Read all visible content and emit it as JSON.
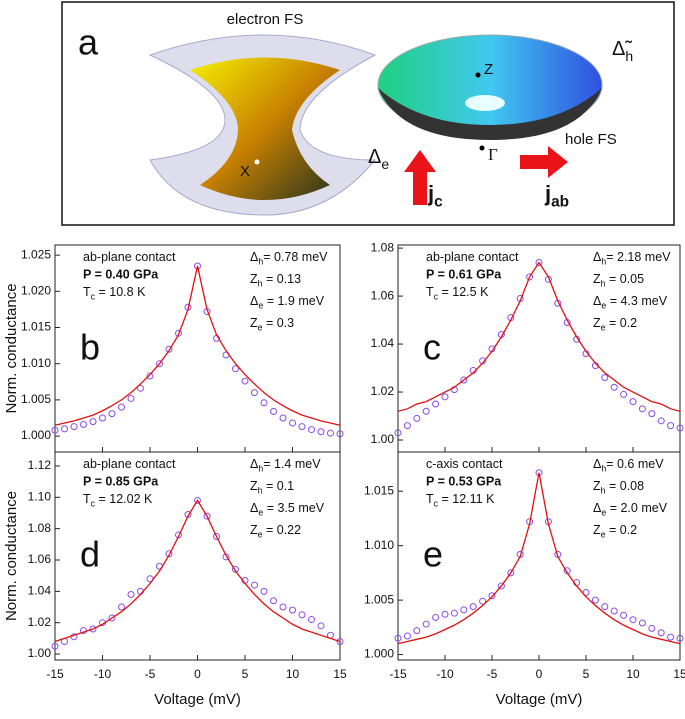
{
  "panel_a": {
    "letter": "a",
    "electron_label": "electron FS",
    "x_point": "X",
    "z_point": "Z",
    "gamma_point": "Γ",
    "hole_label": "hole FS",
    "delta_e": {
      "base": "Δ",
      "sub": "e"
    },
    "delta_h": {
      "base": "Δ̃",
      "sub": "h"
    },
    "jc": {
      "base": "j",
      "sub": "c"
    },
    "jab": {
      "base": "j",
      "sub": "ab"
    }
  },
  "chart_data": [
    {
      "type": "line",
      "panel": "b",
      "ylabel": "Norm. conductance",
      "x": [
        -15,
        -14,
        -13,
        -12,
        -11,
        -10,
        -9,
        -8,
        -7,
        -6,
        -5,
        -4,
        -3,
        -2,
        -1,
        0,
        1,
        2,
        3,
        4,
        5,
        6,
        7,
        8,
        9,
        10,
        11,
        12,
        13,
        14,
        15
      ],
      "series": [
        {
          "mode": "markers",
          "color": "#8a4be8",
          "values": [
            1.0008,
            1.001,
            1.0013,
            1.0016,
            1.002,
            1.0025,
            1.0031,
            1.004,
            1.0052,
            1.0066,
            1.0083,
            1.01,
            1.012,
            1.0142,
            1.0178,
            1.0235,
            1.0172,
            1.0135,
            1.0112,
            1.0093,
            1.0076,
            1.006,
            1.0046,
            1.0034,
            1.0025,
            1.0018,
            1.0013,
            1.0009,
            1.0006,
            1.0004,
            1.0003
          ]
        },
        {
          "mode": "lines",
          "color": "#e01010",
          "values": [
            1.0015,
            1.0018,
            1.0021,
            1.0025,
            1.0029,
            1.0035,
            1.0042,
            1.005,
            1.006,
            1.0072,
            1.0085,
            1.01,
            1.0118,
            1.014,
            1.0175,
            1.0235,
            1.0175,
            1.014,
            1.0118,
            1.01,
            1.0085,
            1.0072,
            1.006,
            1.005,
            1.0042,
            1.0035,
            1.0029,
            1.0025,
            1.0021,
            1.0018,
            1.0015
          ]
        }
      ],
      "xlim": [
        -15,
        15
      ],
      "xticks": [
        -15,
        -10,
        -5,
        0,
        5,
        10,
        15
      ],
      "ylim": [
        0.9978,
        1.0264
      ],
      "yticks": [
        {
          "value": 1.0,
          "label": "1.000"
        },
        1.005,
        {
          "value": 1.01,
          "label": "1.010"
        },
        1.015,
        {
          "value": 1.02,
          "label": "1.020"
        },
        1.025
      ],
      "left_notes": [
        {
          "text": "ab-plane contact"
        },
        {
          "text": "P = 0.40 GPa",
          "color": "#e8141a"
        },
        {
          "base": "T",
          "sub": "c",
          "rest": " = 10.8 K"
        }
      ],
      "right_notes": [
        {
          "base": "Δ",
          "sub": "h",
          "rest": "= 0.78 meV"
        },
        {
          "base": "Z",
          "sub": "h",
          "rest": " = 0.13"
        },
        {
          "base": "Δ",
          "sub": "e",
          "rest": " = 1.9 meV"
        },
        {
          "base": "Z",
          "sub": "e",
          "rest": " = 0.3"
        }
      ]
    },
    {
      "type": "line",
      "panel": "c",
      "x": [
        -15,
        -14,
        -13,
        -12,
        -11,
        -10,
        -9,
        -8,
        -7,
        -6,
        -5,
        -4,
        -3,
        -2,
        -1,
        0,
        1,
        2,
        3,
        4,
        5,
        6,
        7,
        8,
        9,
        10,
        11,
        12,
        13,
        14,
        15
      ],
      "series": [
        {
          "mode": "markers",
          "color": "#8a4be8",
          "values": [
            1.003,
            1.006,
            1.009,
            1.012,
            1.015,
            1.018,
            1.021,
            1.025,
            1.029,
            1.033,
            1.038,
            1.044,
            1.051,
            1.059,
            1.068,
            1.074,
            1.067,
            1.057,
            1.049,
            1.042,
            1.036,
            1.031,
            1.026,
            1.022,
            1.019,
            1.016,
            1.013,
            1.011,
            1.008,
            1.006,
            1.005
          ]
        },
        {
          "mode": "lines",
          "color": "#e01010",
          "values": [
            1.012,
            1.013,
            1.015,
            1.016,
            1.018,
            1.02,
            1.022,
            1.025,
            1.028,
            1.032,
            1.037,
            1.043,
            1.05,
            1.058,
            1.068,
            1.074,
            1.068,
            1.058,
            1.05,
            1.043,
            1.037,
            1.032,
            1.028,
            1.025,
            1.022,
            1.02,
            1.018,
            1.016,
            1.015,
            1.013,
            1.012
          ]
        }
      ],
      "xlim": [
        -15,
        15
      ],
      "xticks": [
        -15,
        -10,
        -5,
        0,
        5,
        10,
        15
      ],
      "ylim": [
        0.995,
        1.0813
      ],
      "yticks": [
        {
          "value": 1.0,
          "label": "1.00"
        },
        1.02,
        1.04,
        1.06,
        1.08
      ],
      "left_notes": [
        {
          "text": "ab-plane contact"
        },
        {
          "text": "P = 0.61 GPa",
          "color": "#e8141a"
        },
        {
          "base": "T",
          "sub": "c",
          "rest": " = 12.5 K"
        }
      ],
      "right_notes": [
        {
          "base": "Δ",
          "sub": "h",
          "rest": "= 2.18 meV"
        },
        {
          "base": "Z",
          "sub": "h",
          "rest": " = 0.05"
        },
        {
          "base": "Δ",
          "sub": "e",
          "rest": " = 4.3 meV"
        },
        {
          "base": "Z",
          "sub": "e",
          "rest": " = 0.2"
        }
      ]
    },
    {
      "type": "line",
      "panel": "d",
      "ylabel": "Norm. conductance",
      "xlabel": "Voltage (mV)",
      "x": [
        -15,
        -14,
        -13,
        -12,
        -11,
        -10,
        -9,
        -8,
        -7,
        -6,
        -5,
        -4,
        -3,
        -2,
        -1,
        0,
        1,
        2,
        3,
        4,
        5,
        6,
        7,
        8,
        9,
        10,
        11,
        12,
        13,
        14,
        15
      ],
      "series": [
        {
          "mode": "markers",
          "color": "#8a4be8",
          "values": [
            1.005,
            1.008,
            1.011,
            1.015,
            1.016,
            1.02,
            1.023,
            1.03,
            1.038,
            1.04,
            1.048,
            1.056,
            1.064,
            1.076,
            1.089,
            1.098,
            1.088,
            1.075,
            1.062,
            1.054,
            1.047,
            1.044,
            1.04,
            1.034,
            1.03,
            1.028,
            1.025,
            1.022,
            1.018,
            1.012,
            1.008
          ]
        },
        {
          "mode": "lines",
          "color": "#e01010",
          "values": [
            1.008,
            1.01,
            1.012,
            1.014,
            1.016,
            1.019,
            1.023,
            1.027,
            1.032,
            1.038,
            1.045,
            1.053,
            1.063,
            1.075,
            1.088,
            1.098,
            1.088,
            1.075,
            1.063,
            1.053,
            1.045,
            1.038,
            1.032,
            1.027,
            1.023,
            1.019,
            1.016,
            1.014,
            1.012,
            1.01,
            1.008
          ]
        }
      ],
      "xlim": [
        -15,
        15
      ],
      "xticks": [
        -15,
        -10,
        -5,
        0,
        5,
        10,
        15
      ],
      "ylim": [
        0.9962,
        1.1289
      ],
      "yticks": [
        {
          "value": 1.0,
          "label": "1.00"
        },
        1.02,
        1.04,
        1.06,
        1.08,
        {
          "value": 1.1,
          "label": "1.10"
        },
        1.12
      ],
      "left_notes": [
        {
          "text": "ab-plane contact"
        },
        {
          "text": "P = 0.85 GPa",
          "color": "#e8141a"
        },
        {
          "base": "T",
          "sub": "c",
          "rest": " = 12.02 K"
        }
      ],
      "right_notes": [
        {
          "base": "Δ",
          "sub": "h",
          "rest": "= 1.4 meV"
        },
        {
          "base": "Z",
          "sub": "h",
          "rest": " = 0.1"
        },
        {
          "base": "Δ",
          "sub": "e",
          "rest": " = 3.5 meV"
        },
        {
          "base": "Z",
          "sub": "e",
          "rest": " = 0.22"
        }
      ]
    },
    {
      "type": "line",
      "panel": "e",
      "xlabel": "Voltage (mV)",
      "x": [
        -15,
        -14,
        -13,
        -12,
        -11,
        -10,
        -9,
        -8,
        -7,
        -6,
        -5,
        -4,
        -3,
        -2,
        -1,
        0,
        1,
        2,
        3,
        4,
        5,
        6,
        7,
        8,
        9,
        10,
        11,
        12,
        13,
        14,
        15
      ],
      "series": [
        {
          "mode": "markers",
          "color": "#8a4be8",
          "values": [
            1.0015,
            1.0017,
            1.0022,
            1.0028,
            1.0034,
            1.0037,
            1.0038,
            1.0041,
            1.0044,
            1.0049,
            1.0054,
            1.0063,
            1.0075,
            1.0092,
            1.0122,
            1.0167,
            1.0122,
            1.0092,
            1.0077,
            1.0066,
            1.0057,
            1.005,
            1.0044,
            1.004,
            1.0036,
            1.0032,
            1.0029,
            1.0024,
            1.002,
            1.0016,
            1.0015
          ]
        },
        {
          "mode": "lines",
          "color": "#e01010",
          "values": [
            1.001,
            1.0012,
            1.0014,
            1.0016,
            1.0019,
            1.0023,
            1.0027,
            1.0032,
            1.0038,
            1.0045,
            1.0053,
            1.0063,
            1.0075,
            1.009,
            1.012,
            1.0167,
            1.012,
            1.009,
            1.0075,
            1.0063,
            1.0053,
            1.0045,
            1.0038,
            1.0032,
            1.0027,
            1.0023,
            1.0019,
            1.0016,
            1.0014,
            1.0012,
            1.001
          ]
        }
      ],
      "xlim": [
        -15,
        15
      ],
      "xticks": [
        -15,
        -10,
        -5,
        0,
        5,
        10,
        15
      ],
      "ylim": [
        0.9995,
        1.0186
      ],
      "yticks": [
        {
          "value": 1.0,
          "label": "1.000"
        },
        1.005,
        {
          "value": 1.01,
          "label": "1.010"
        },
        1.015
      ],
      "left_notes": [
        {
          "text": "c-axis contact"
        },
        {
          "text": "P = 0.53 GPa",
          "color": "#e8141a"
        },
        {
          "base": "T",
          "sub": "c",
          "rest": " = 12.11 K"
        }
      ],
      "right_notes": [
        {
          "base": "Δ",
          "sub": "h",
          "rest": "= 0.6 meV"
        },
        {
          "base": "Z",
          "sub": "h",
          "rest": " = 0.08"
        },
        {
          "base": "Δ",
          "sub": "e",
          "rest": " = 2.0 meV"
        },
        {
          "base": "Z",
          "sub": "e",
          "rest": " = 0.2"
        }
      ]
    }
  ]
}
